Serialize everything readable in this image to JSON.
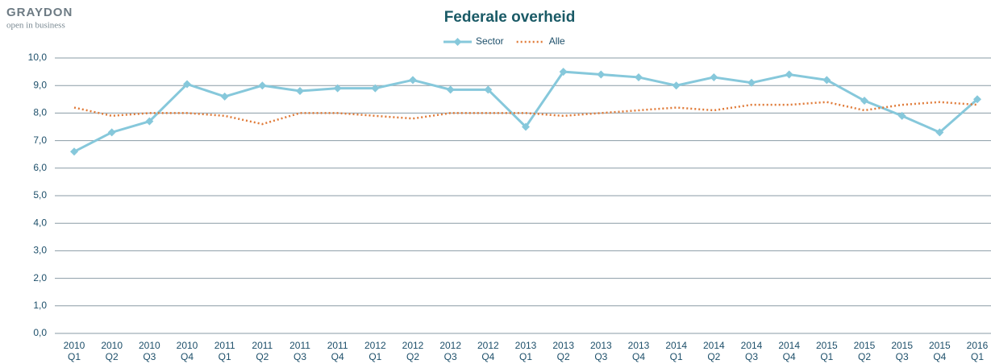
{
  "logo": {
    "name": "GRAYDON",
    "tagline": "open in business"
  },
  "chart_data": {
    "type": "line",
    "title": "Federale overheid",
    "categories": [
      "2010 Q1",
      "2010 Q2",
      "2010 Q3",
      "2010 Q4",
      "2011 Q1",
      "2011 Q2",
      "2011 Q3",
      "2011 Q4",
      "2012 Q1",
      "2012 Q2",
      "2012 Q3",
      "2012 Q4",
      "2013 Q1",
      "2013 Q2",
      "2013 Q3",
      "2013 Q4",
      "2014 Q1",
      "2014 Q2",
      "2014 Q3",
      "2014 Q4",
      "2015 Q1",
      "2015 Q2",
      "2015 Q3",
      "2015 Q4",
      "2016 Q1"
    ],
    "series": [
      {
        "name": "Sector",
        "color": "#86c8db",
        "marker": "diamond",
        "values": [
          6.6,
          7.3,
          7.7,
          9.05,
          8.6,
          9.0,
          8.8,
          8.9,
          8.9,
          9.2,
          8.85,
          8.85,
          7.5,
          9.5,
          9.4,
          9.3,
          9.0,
          9.3,
          9.1,
          9.4,
          9.2,
          8.45,
          7.9,
          7.3,
          8.5
        ]
      },
      {
        "name": "Alle",
        "color": "#e07b39",
        "dash": "dotted",
        "values": [
          8.2,
          7.9,
          8.0,
          8.0,
          7.9,
          7.6,
          8.0,
          8.0,
          7.9,
          7.8,
          8.0,
          8.0,
          8.0,
          7.9,
          8.0,
          8.1,
          8.2,
          8.1,
          8.3,
          8.3,
          8.4,
          8.1,
          8.3,
          8.4,
          8.3
        ]
      }
    ],
    "ylim": [
      0,
      10
    ],
    "yticks": [
      {
        "value": 0,
        "label": "0,0"
      },
      {
        "value": 1,
        "label": "1,0"
      },
      {
        "value": 2,
        "label": "2,0"
      },
      {
        "value": 3,
        "label": "3,0"
      },
      {
        "value": 4,
        "label": "4,0"
      },
      {
        "value": 5,
        "label": "5,0"
      },
      {
        "value": 6,
        "label": "6,0"
      },
      {
        "value": 7,
        "label": "7,0"
      },
      {
        "value": 8,
        "label": "8,0"
      },
      {
        "value": 9,
        "label": "9,0"
      },
      {
        "value": 10,
        "label": "10,0"
      }
    ],
    "grid": true,
    "legend": "top"
  }
}
